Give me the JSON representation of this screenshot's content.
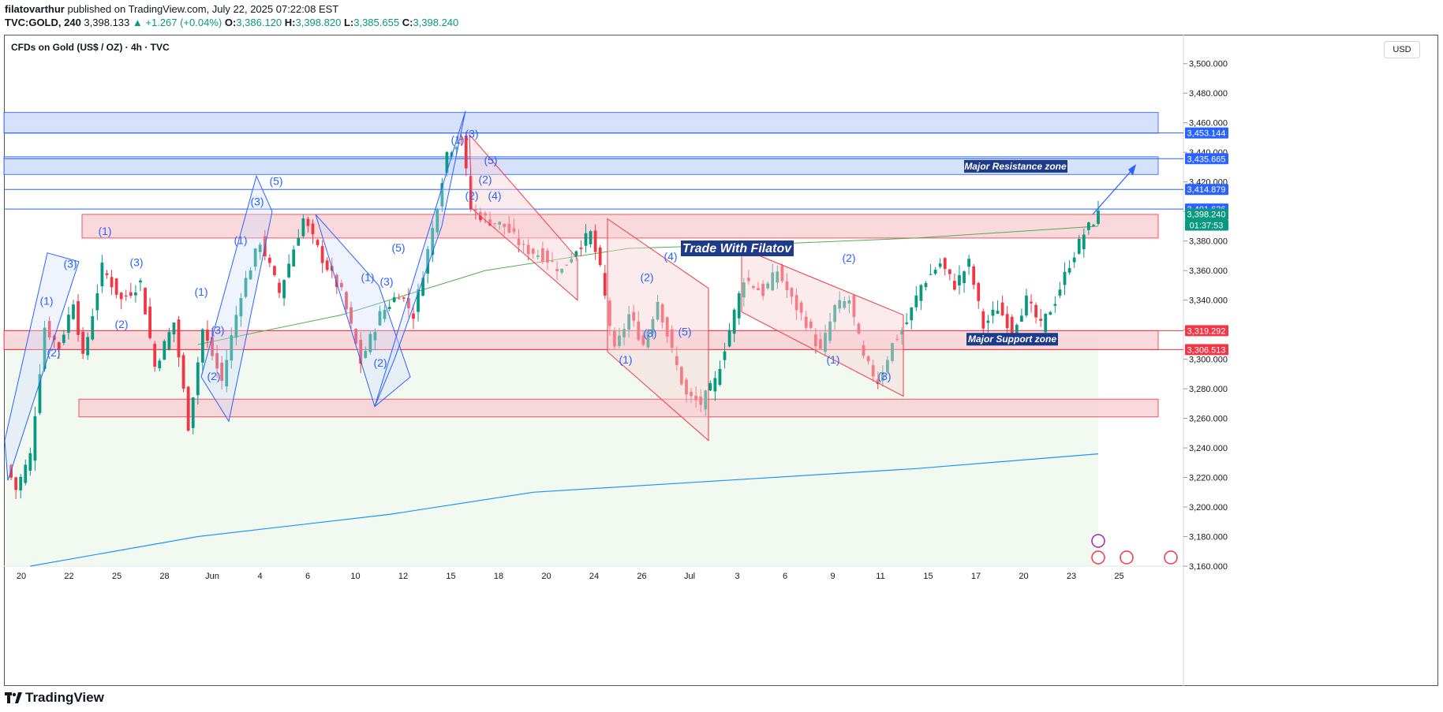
{
  "header": {
    "publisher": "filatovarthur",
    "published_text": "published on TradingView.com, July 22, 2025 07:22:08 EST",
    "symbol": "TVC:GOLD, 240",
    "last": "3,398.133",
    "change": "▲ +1.267 (+0.04%)",
    "o_label": "O:",
    "o_value": "3,386.120",
    "h_label": "H:",
    "h_value": "3,398.820",
    "l_label": "L:",
    "l_value": "3,385.655",
    "c_label": "C:",
    "c_value": "3,398.240"
  },
  "chart_title": "CFDs on Gold (US$ / OZ) · 4h · TVC",
  "currency": "USD",
  "footer": {
    "brand": "TradingView"
  },
  "colors": {
    "up": "#089981",
    "down": "#f23645",
    "wave_blue": "#2962ff",
    "zone_red_fill": "#f8d3d6",
    "zone_blue_fill": "#cfdcfb",
    "ma_green": "#4caf50",
    "ma_blue": "#2196f3"
  },
  "chart_data": {
    "type": "candlestick",
    "title": "CFDs on Gold (US$ / OZ) · 4h · TVC",
    "ylim": [
      3160,
      3510
    ],
    "y_ticks": [
      "3,500.000",
      "3,480.000",
      "3,460.000",
      "3,440.000",
      "3,420.000",
      "3,400.000",
      "3,380.000",
      "3,360.000",
      "3,340.000",
      "3,320.000",
      "3,300.000",
      "3,280.000",
      "3,260.000",
      "3,240.000",
      "3,220.000",
      "3,200.000",
      "3,180.000",
      "3,160.000"
    ],
    "x_ticks": [
      "20",
      "22",
      "25",
      "28",
      "Jun",
      "4",
      "6",
      "10",
      "12",
      "15",
      "18",
      "20",
      "24",
      "26",
      "Jul",
      "3",
      "6",
      "9",
      "11",
      "15",
      "17",
      "20",
      "23",
      "25"
    ],
    "close_path": [
      {
        "t": 0,
        "p": 3228
      },
      {
        "t": 2,
        "p": 3212
      },
      {
        "t": 5,
        "p": 3235
      },
      {
        "t": 8,
        "p": 3322
      },
      {
        "t": 11,
        "p": 3308
      },
      {
        "t": 14,
        "p": 3340
      },
      {
        "t": 16,
        "p": 3300
      },
      {
        "t": 20,
        "p": 3362
      },
      {
        "t": 24,
        "p": 3340
      },
      {
        "t": 28,
        "p": 3352
      },
      {
        "t": 31,
        "p": 3295
      },
      {
        "t": 35,
        "p": 3325
      },
      {
        "t": 38,
        "p": 3255
      },
      {
        "t": 41,
        "p": 3320
      },
      {
        "t": 45,
        "p": 3285
      },
      {
        "t": 49,
        "p": 3345
      },
      {
        "t": 53,
        "p": 3380
      },
      {
        "t": 57,
        "p": 3345
      },
      {
        "t": 62,
        "p": 3395
      },
      {
        "t": 66,
        "p": 3368
      },
      {
        "t": 70,
        "p": 3345
      },
      {
        "t": 74,
        "p": 3298
      },
      {
        "t": 78,
        "p": 3330
      },
      {
        "t": 82,
        "p": 3345
      },
      {
        "t": 85,
        "p": 3330
      },
      {
        "t": 89,
        "p": 3388
      },
      {
        "t": 92,
        "p": 3440
      },
      {
        "t": 95,
        "p": 3450
      },
      {
        "t": 97,
        "p": 3402
      },
      {
        "t": 100,
        "p": 3395
      },
      {
        "t": 104,
        "p": 3390
      },
      {
        "t": 108,
        "p": 3375
      },
      {
        "t": 112,
        "p": 3370
      },
      {
        "t": 116,
        "p": 3360
      },
      {
        "t": 119,
        "p": 3375
      },
      {
        "t": 122,
        "p": 3385
      },
      {
        "t": 124,
        "p": 3360
      },
      {
        "t": 127,
        "p": 3305
      },
      {
        "t": 130,
        "p": 3330
      },
      {
        "t": 133,
        "p": 3310
      },
      {
        "t": 136,
        "p": 3340
      },
      {
        "t": 139,
        "p": 3305
      },
      {
        "t": 142,
        "p": 3275
      },
      {
        "t": 145,
        "p": 3270
      },
      {
        "t": 148,
        "p": 3285
      },
      {
        "t": 151,
        "p": 3320
      },
      {
        "t": 154,
        "p": 3355
      },
      {
        "t": 158,
        "p": 3345
      },
      {
        "t": 161,
        "p": 3360
      },
      {
        "t": 164,
        "p": 3340
      },
      {
        "t": 167,
        "p": 3325
      },
      {
        "t": 170,
        "p": 3305
      },
      {
        "t": 173,
        "p": 3335
      },
      {
        "t": 176,
        "p": 3340
      },
      {
        "t": 179,
        "p": 3300
      },
      {
        "t": 182,
        "p": 3285
      },
      {
        "t": 185,
        "p": 3310
      },
      {
        "t": 188,
        "p": 3325
      },
      {
        "t": 191,
        "p": 3350
      },
      {
        "t": 195,
        "p": 3365
      },
      {
        "t": 198,
        "p": 3350
      },
      {
        "t": 201,
        "p": 3365
      },
      {
        "t": 204,
        "p": 3322
      },
      {
        "t": 207,
        "p": 3335
      },
      {
        "t": 210,
        "p": 3320
      },
      {
        "t": 213,
        "p": 3340
      },
      {
        "t": 216,
        "p": 3322
      },
      {
        "t": 219,
        "p": 3340
      },
      {
        "t": 222,
        "p": 3365
      },
      {
        "t": 225,
        "p": 3385
      },
      {
        "t": 228,
        "p": 3398
      }
    ],
    "ma_green": [
      [
        40,
        3310
      ],
      [
        70,
        3330
      ],
      [
        100,
        3360
      ],
      [
        130,
        3375
      ],
      [
        160,
        3378
      ],
      [
        190,
        3382
      ],
      [
        228,
        3390
      ]
    ],
    "ma_blue": [
      [
        5,
        3160
      ],
      [
        40,
        3180
      ],
      [
        80,
        3195
      ],
      [
        110,
        3210
      ],
      [
        150,
        3218
      ],
      [
        190,
        3226
      ],
      [
        228,
        3236
      ]
    ],
    "zones": [
      {
        "name": "Major Resistance zone",
        "y1": 3425,
        "y2": 3437,
        "color": "blue",
        "label": true
      },
      {
        "name": "top zone",
        "y1": 3453,
        "y2": 3467,
        "color": "blue",
        "label": false
      },
      {
        "name": "Major Support zone",
        "y1": 3306.5,
        "y2": 3319.3,
        "color": "red",
        "label": true
      },
      {
        "name": "upper red",
        "y1": 3382,
        "y2": 3398,
        "color": "red",
        "label": false
      },
      {
        "name": "lower red",
        "y1": 3261,
        "y2": 3273,
        "color": "red",
        "label": false
      }
    ],
    "price_labels": [
      {
        "value": "3,453.144",
        "color": "#2962ff"
      },
      {
        "value": "3,435.665",
        "color": "#2962ff"
      },
      {
        "value": "3,414.879",
        "color": "#2962ff"
      },
      {
        "value": "3,401.626",
        "color": "#2962ff"
      },
      {
        "value": "3,398.240",
        "color": "#089981"
      },
      {
        "value": "01:37:53",
        "color": "#089981"
      },
      {
        "value": "3,319.292",
        "color": "#f23645"
      },
      {
        "value": "3,306.513",
        "color": "#f23645"
      }
    ],
    "annotations": {
      "resistance": "Major Resistance zone",
      "support": "Major Support zone",
      "watermark": "Trade With Filatov"
    },
    "wave_labels": [
      "(1)",
      "(2)",
      "(3)",
      "(4)",
      "(5)"
    ]
  }
}
